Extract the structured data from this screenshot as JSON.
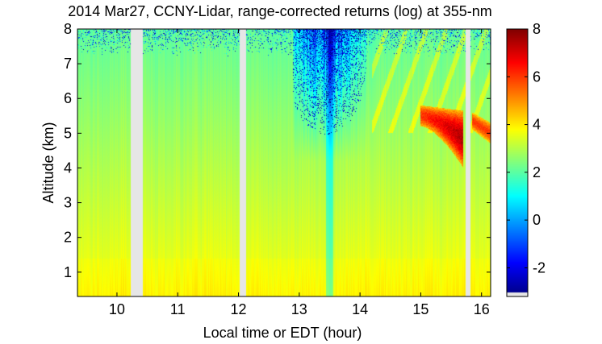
{
  "chart_data": {
    "type": "heatmap",
    "title": "2014 Mar27, CCNY-Lidar, range-corrected returns (log) at 355-nm",
    "xlabel": "Local time or EDT (hour)",
    "ylabel": "Altitude (km)",
    "xlim": [
      9.35,
      16.15
    ],
    "ylim": [
      0.3,
      8.0
    ],
    "xticks": [
      10,
      11,
      12,
      13,
      14,
      15,
      16
    ],
    "yticks": [
      1,
      2,
      3,
      4,
      5,
      6,
      7,
      8
    ],
    "colorbar": {
      "colormap": "jet",
      "clim": [
        -3.2,
        8.0
      ],
      "ticks": [
        -2,
        0,
        2,
        4,
        6,
        8
      ]
    },
    "data_gaps_hours": [
      [
        10.22,
        10.42
      ],
      [
        12.02,
        12.12
      ],
      [
        15.74,
        15.82
      ]
    ],
    "features": {
      "boundary_layer_top_km": 1.4,
      "cloud_layer": {
        "time_range_hours": [
          15.0,
          15.7
        ],
        "altitude_range_km": [
          4.0,
          5.8
        ],
        "peak_value": 7.0
      },
      "cloud_layer_2": {
        "time_range_hours": [
          15.85,
          16.15
        ],
        "altitude_range_km": [
          4.7,
          5.6
        ],
        "peak_value": 6.0
      },
      "low_signal_region": {
        "time_range_hours": [
          12.9,
          14.1
        ],
        "altitude_range_km": [
          5.5,
          8.0
        ],
        "min_value": -3.0
      }
    }
  },
  "colors": {
    "axis": "#000000",
    "gap": "#e6e6e6",
    "background": "#ffffff"
  }
}
